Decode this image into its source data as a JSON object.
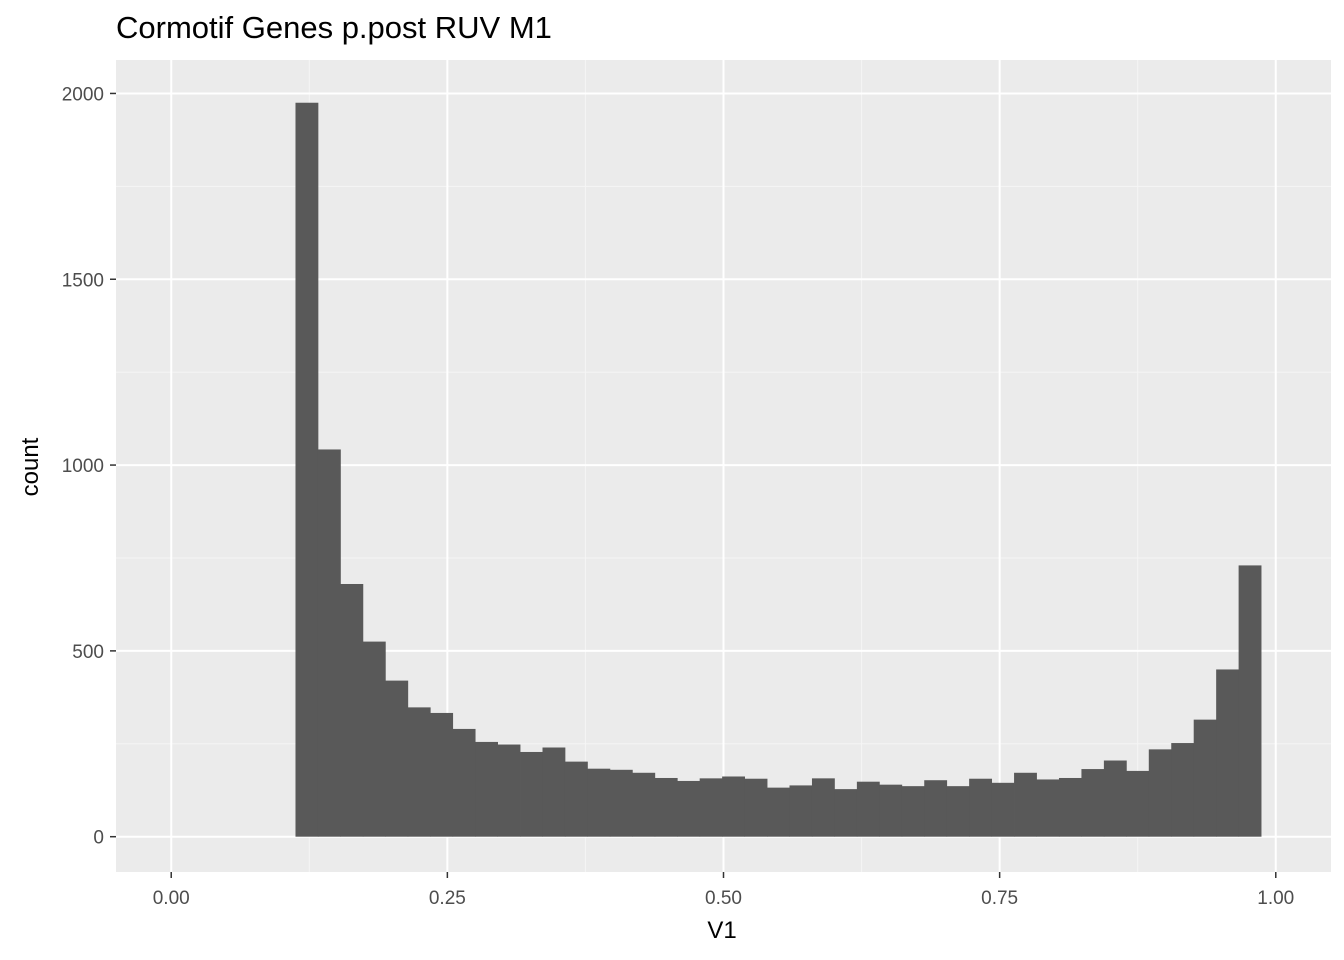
{
  "chart_data": {
    "type": "bar",
    "title": "Cormotif Genes p.post RUV M1",
    "xlabel": "V1",
    "ylabel": "count",
    "xlim": [
      -0.05,
      1.05
    ],
    "ylim": [
      -95,
      2090
    ],
    "x_ticks": [
      0.0,
      0.25,
      0.5,
      0.75,
      1.0
    ],
    "x_tick_labels": [
      "0.00",
      "0.25",
      "0.50",
      "0.75",
      "1.00"
    ],
    "y_ticks": [
      0,
      500,
      1000,
      1500,
      2000
    ],
    "y_tick_labels": [
      "0",
      "500",
      "1000",
      "1500",
      "2000"
    ],
    "grid": true,
    "bin_width": 0.02033,
    "bin_start": 0.1125,
    "values": [
      1975,
      1042,
      680,
      525,
      420,
      348,
      333,
      290,
      255,
      248,
      228,
      240,
      202,
      183,
      180,
      172,
      158,
      150,
      157,
      162,
      156,
      132,
      138,
      157,
      128,
      148,
      140,
      136,
      152,
      136,
      156,
      145,
      172,
      154,
      158,
      182,
      205,
      177,
      235,
      252,
      315,
      450,
      730
    ],
    "colors": {
      "bar": "#595959",
      "panel": "#ebebeb",
      "grid_major": "#ffffff",
      "grid_minor": "#f5f5f5",
      "tick": "#333333",
      "tick_label": "#4d4d4d"
    }
  }
}
